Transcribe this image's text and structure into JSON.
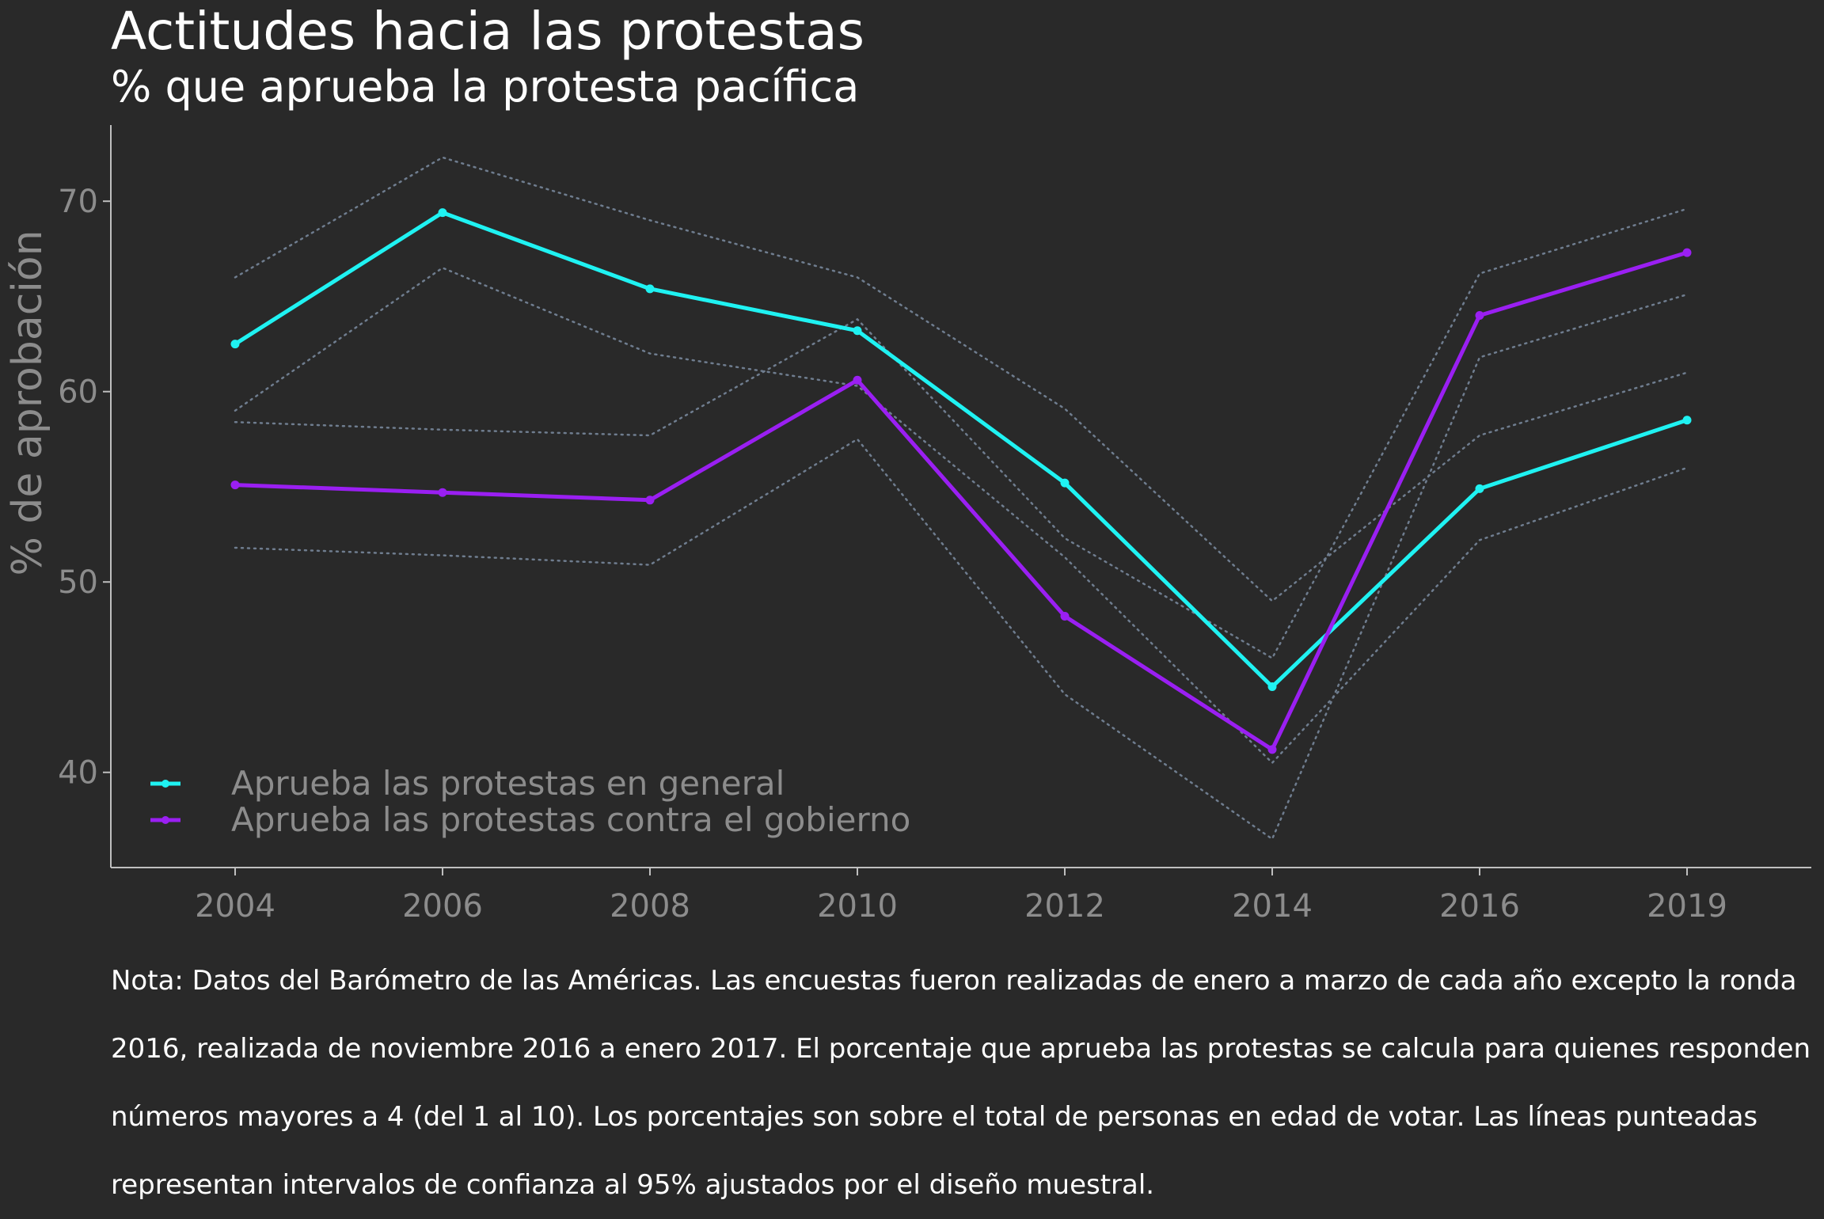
{
  "colors": {
    "background": "#292929",
    "general": "#1ff2f2",
    "gobierno": "#9a1ff2",
    "ci": "#6f7d8f",
    "axis": "#bfbfbf",
    "tick_text": "#8c8c8c"
  },
  "chart_data": {
    "type": "line",
    "title": "Actitudes hacia las protestas",
    "subtitle": "% que aprueba la protesta pacífica",
    "xlabel": "",
    "ylabel": "% de aprobación",
    "categories": [
      "2004",
      "2006",
      "2008",
      "2010",
      "2012",
      "2014",
      "2016",
      "2019"
    ],
    "ylim": [
      35,
      74
    ],
    "yticks": [
      40,
      50,
      60,
      70
    ],
    "grid": false,
    "legend_position": "bottom-left",
    "series": [
      {
        "name": "Aprueba las protestas en general",
        "color": "#1ff2f2",
        "values": [
          62.5,
          69.4,
          65.4,
          63.2,
          55.2,
          44.5,
          54.9,
          58.5
        ],
        "ci_lower": [
          59.0,
          66.5,
          62.0,
          60.3,
          51.3,
          40.5,
          52.2,
          56.0
        ],
        "ci_upper": [
          66.0,
          72.3,
          69.0,
          66.0,
          59.1,
          49.0,
          57.7,
          61.0
        ]
      },
      {
        "name": "Aprueba las protestas contra el gobierno",
        "color": "#9a1ff2",
        "values": [
          55.1,
          54.7,
          54.3,
          60.6,
          48.2,
          41.2,
          64.0,
          67.3
        ],
        "ci_lower": [
          51.8,
          51.4,
          50.9,
          57.5,
          44.1,
          36.5,
          61.8,
          65.1
        ],
        "ci_upper": [
          58.4,
          58.0,
          57.7,
          63.8,
          52.3,
          46.0,
          66.2,
          69.6
        ]
      }
    ]
  },
  "note": "Nota: Datos del Barómetro de las Américas. Las encuestas fueron realizadas de enero a marzo de cada año excepto la ronda 2016, realizada de noviembre 2016 a enero 2017. El porcentaje que aprueba las protestas se calcula para quienes responden números mayores a 4 (del 1 al 10). Los porcentajes son sobre el total de personas en edad de votar. Las líneas punteadas representan intervalos de confianza al 95% ajustados por el diseño muestral."
}
